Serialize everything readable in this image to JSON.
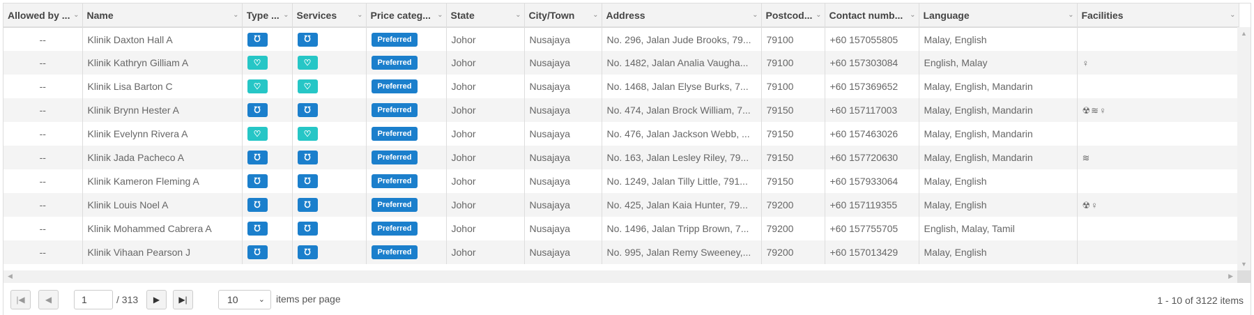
{
  "columns": [
    "Allowed by ...",
    "Name",
    "Type ...",
    "Services",
    "Price categ...",
    "State",
    "City/Town",
    "Address",
    "Postcod...",
    "Contact numb...",
    "Language",
    "Facilities"
  ],
  "colors": {
    "stethoscope": "#1b7fcc",
    "tooth": "#26c6c6",
    "preferred": "#1b7fcc"
  },
  "rows": [
    {
      "allowed": "--",
      "name": "Klinik Daxton Hall A",
      "type": "stethoscope-icon",
      "services": "stethoscope-icon",
      "price": "Preferred",
      "state": "Johor",
      "city": "Nusajaya",
      "address": "No. 296, Jalan Jude Brooks, 79...",
      "postcode": "79100",
      "contact": "+60 157055805",
      "language": "Malay, English",
      "facilities": []
    },
    {
      "allowed": "--",
      "name": "Klinik Kathryn Gilliam A",
      "type": "tooth-icon",
      "services": "tooth-icon",
      "price": "Preferred",
      "state": "Johor",
      "city": "Nusajaya",
      "address": "No. 1482, Jalan Analia Vaugha...",
      "postcode": "79100",
      "contact": "+60 157303084",
      "language": "English, Malay",
      "facilities": [
        "female-icon"
      ]
    },
    {
      "allowed": "--",
      "name": "Klinik Lisa Barton C",
      "type": "tooth-icon",
      "services": "tooth-icon",
      "price": "Preferred",
      "state": "Johor",
      "city": "Nusajaya",
      "address": "No. 1468, Jalan Elyse Burks, 7...",
      "postcode": "79100",
      "contact": "+60 157369652",
      "language": "Malay, English, Mandarin",
      "facilities": []
    },
    {
      "allowed": "--",
      "name": "Klinik Brynn Hester A",
      "type": "stethoscope-icon",
      "services": "stethoscope-icon",
      "price": "Preferred",
      "state": "Johor",
      "city": "Nusajaya",
      "address": "No. 474, Jalan Brock William, 7...",
      "postcode": "79150",
      "contact": "+60 157117003",
      "language": "Malay, English, Mandarin",
      "facilities": [
        "radiation-icon",
        "waves-icon",
        "female-icon"
      ]
    },
    {
      "allowed": "--",
      "name": "Klinik Evelynn Rivera A",
      "type": "tooth-icon",
      "services": "tooth-icon",
      "price": "Preferred",
      "state": "Johor",
      "city": "Nusajaya",
      "address": "No. 476, Jalan Jackson Webb, ...",
      "postcode": "79150",
      "contact": "+60 157463026",
      "language": "Malay, English, Mandarin",
      "facilities": []
    },
    {
      "allowed": "--",
      "name": "Klinik Jada Pacheco A",
      "type": "stethoscope-icon",
      "services": "stethoscope-icon",
      "price": "Preferred",
      "state": "Johor",
      "city": "Nusajaya",
      "address": "No. 163, Jalan Lesley Riley, 79...",
      "postcode": "79150",
      "contact": "+60 157720630",
      "language": "Malay, English, Mandarin",
      "facilities": [
        "waves-icon"
      ]
    },
    {
      "allowed": "--",
      "name": "Klinik Kameron Fleming A",
      "type": "stethoscope-icon",
      "services": "stethoscope-icon",
      "price": "Preferred",
      "state": "Johor",
      "city": "Nusajaya",
      "address": "No. 1249, Jalan Tilly Little, 791...",
      "postcode": "79150",
      "contact": "+60 157933064",
      "language": "Malay, English",
      "facilities": []
    },
    {
      "allowed": "--",
      "name": "Klinik Louis Noel A",
      "type": "stethoscope-icon",
      "services": "stethoscope-icon",
      "price": "Preferred",
      "state": "Johor",
      "city": "Nusajaya",
      "address": "No. 425, Jalan Kaia Hunter, 79...",
      "postcode": "79200",
      "contact": "+60 157119355",
      "language": "Malay, English",
      "facilities": [
        "radiation-icon",
        "female-icon"
      ]
    },
    {
      "allowed": "--",
      "name": "Klinik Mohammed Cabrera A",
      "type": "stethoscope-icon",
      "services": "stethoscope-icon",
      "price": "Preferred",
      "state": "Johor",
      "city": "Nusajaya",
      "address": "No. 1496, Jalan Tripp Brown, 7...",
      "postcode": "79200",
      "contact": "+60 157755705",
      "language": "English, Malay, Tamil",
      "facilities": []
    },
    {
      "allowed": "--",
      "name": "Klinik Vihaan Pearson J",
      "type": "stethoscope-icon",
      "services": "stethoscope-icon",
      "price": "Preferred",
      "state": "Johor",
      "city": "Nusajaya",
      "address": "No. 995, Jalan Remy Sweeney,...",
      "postcode": "79200",
      "contact": "+60 157013429",
      "language": "Malay, English",
      "facilities": []
    }
  ],
  "pager": {
    "page": "1",
    "total_pages": "/ 313",
    "page_size": "10",
    "items_per_page_label": "items per page",
    "info": "1 - 10 of 3122 items"
  }
}
